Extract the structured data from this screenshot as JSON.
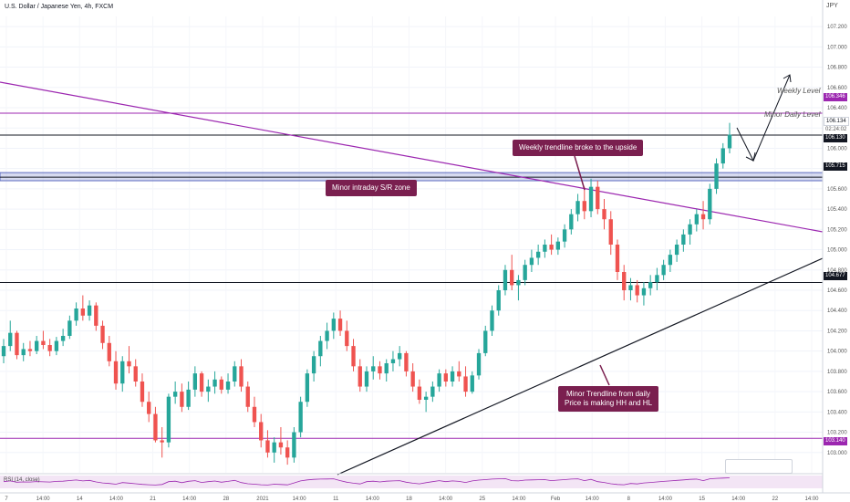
{
  "header": {
    "title": "U.S. Dollar / Japanese Yen, 4h, FXCM"
  },
  "currency": "JPY",
  "colors": {
    "up": "#26a69a",
    "down": "#ef5350",
    "purple": "#9c27b0",
    "dark": "#131722",
    "callout": "#7a1f4f",
    "zone": "#5c6bc0",
    "rsi": "#9c27b0"
  },
  "annotations": {
    "weekly_trendline": "Weekly trendline broke to the upside",
    "sr_zone": "Minor intraday S/R zone",
    "minor_trend_line1": "Minor Trendline from daily",
    "minor_trend_line2": "Price is making HH and HL",
    "weekly_level": "Weekly Level",
    "minor_daily_level": "Minor Daily Level"
  },
  "rsi_label": "RSI (14, close)",
  "chart_data": {
    "type": "candlestick",
    "symbol": "USD/JPY",
    "interval": "4h",
    "ylim": [
      102.8,
      107.3
    ],
    "y_ticks": [
      103.0,
      103.2,
      103.4,
      103.6,
      103.8,
      104.0,
      104.2,
      104.4,
      104.6,
      104.8,
      105.0,
      105.2,
      105.4,
      105.6,
      105.8,
      106.0,
      106.2,
      106.4,
      106.6,
      106.8,
      107.0,
      107.2
    ],
    "y_tick_labels": [
      "103.000",
      "103.200",
      "103.400",
      "103.600",
      "103.800",
      "104.000",
      "104.200",
      "104.400",
      "104.600",
      "104.800",
      "105.000",
      "105.200",
      "105.400",
      "105.600",
      "105.800",
      "106.000",
      "106.200",
      "106.400",
      "106.600",
      "106.800",
      "107.000",
      "107.200"
    ],
    "x_labels": [
      "7",
      "14:00",
      "14",
      "14:00",
      "21",
      "14:00",
      "28",
      "2021",
      "14:00",
      "11",
      "14:00",
      "18",
      "14:00",
      "25",
      "14:00",
      "Feb",
      "14:00",
      "8",
      "14:00",
      "15",
      "14:00",
      "22",
      "14:00"
    ],
    "levels": [
      {
        "name": "weekly",
        "price": 106.346,
        "label": "106.346",
        "color": "#9c27b0"
      },
      {
        "name": "minor-daily",
        "price": 106.13,
        "label": "106.130",
        "color": "#131722"
      },
      {
        "name": "sr-zone",
        "price": 105.715,
        "label": "105.715",
        "color": "#131722"
      },
      {
        "name": "support",
        "price": 104.677,
        "label": "104.677",
        "color": "#131722"
      },
      {
        "name": "low-level",
        "price": 103.14,
        "label": "103.140",
        "color": "#9c27b0"
      }
    ],
    "sr_zone": [
      105.68,
      105.76
    ],
    "current_price": "106.134",
    "countdown": "02:24:02",
    "candles": [
      [
        103.95,
        104.12,
        103.88,
        104.05
      ],
      [
        104.05,
        104.3,
        104.0,
        104.18
      ],
      [
        104.18,
        104.2,
        103.92,
        103.96
      ],
      [
        103.96,
        104.08,
        103.9,
        104.02
      ],
      [
        104.02,
        104.1,
        103.95,
        104.0
      ],
      [
        104.0,
        104.15,
        103.97,
        104.1
      ],
      [
        104.1,
        104.2,
        104.02,
        104.06
      ],
      [
        104.06,
        104.12,
        103.95,
        104.0
      ],
      [
        104.0,
        104.14,
        103.96,
        104.1
      ],
      [
        104.1,
        104.22,
        104.05,
        104.15
      ],
      [
        104.15,
        104.35,
        104.12,
        104.3
      ],
      [
        104.3,
        104.48,
        104.25,
        104.42
      ],
      [
        104.42,
        104.55,
        104.3,
        104.35
      ],
      [
        104.35,
        104.5,
        104.3,
        104.45
      ],
      [
        104.45,
        104.48,
        104.2,
        104.25
      ],
      [
        104.25,
        104.3,
        104.02,
        104.08
      ],
      [
        104.08,
        104.15,
        103.85,
        103.9
      ],
      [
        103.9,
        104.0,
        103.62,
        103.68
      ],
      [
        103.68,
        103.95,
        103.6,
        103.9
      ],
      [
        103.9,
        104.05,
        103.78,
        103.85
      ],
      [
        103.85,
        103.92,
        103.65,
        103.7
      ],
      [
        103.7,
        103.78,
        103.45,
        103.5
      ],
      [
        103.5,
        103.6,
        103.3,
        103.38
      ],
      [
        103.38,
        103.45,
        103.1,
        103.12
      ],
      [
        103.12,
        103.25,
        102.95,
        103.1
      ],
      [
        103.1,
        103.58,
        103.05,
        103.55
      ],
      [
        103.55,
        103.7,
        103.48,
        103.6
      ],
      [
        103.6,
        103.68,
        103.4,
        103.45
      ],
      [
        103.45,
        103.7,
        103.42,
        103.62
      ],
      [
        103.62,
        103.85,
        103.55,
        103.78
      ],
      [
        103.78,
        103.8,
        103.55,
        103.6
      ],
      [
        103.6,
        103.72,
        103.5,
        103.65
      ],
      [
        103.65,
        103.8,
        103.58,
        103.72
      ],
      [
        103.72,
        103.75,
        103.58,
        103.62
      ],
      [
        103.62,
        103.78,
        103.58,
        103.7
      ],
      [
        103.7,
        103.9,
        103.65,
        103.85
      ],
      [
        103.85,
        103.92,
        103.6,
        103.65
      ],
      [
        103.65,
        103.7,
        103.4,
        103.45
      ],
      [
        103.45,
        103.55,
        103.25,
        103.3
      ],
      [
        103.3,
        103.38,
        103.05,
        103.12
      ],
      [
        103.12,
        103.22,
        102.95,
        103.0
      ],
      [
        103.0,
        103.15,
        102.9,
        103.1
      ],
      [
        103.1,
        103.25,
        102.98,
        103.05
      ],
      [
        103.05,
        103.12,
        102.88,
        102.95
      ],
      [
        102.95,
        103.25,
        102.9,
        103.2
      ],
      [
        103.2,
        103.55,
        103.15,
        103.5
      ],
      [
        103.5,
        103.82,
        103.45,
        103.78
      ],
      [
        103.78,
        104.0,
        103.7,
        103.95
      ],
      [
        103.95,
        104.15,
        103.85,
        104.1
      ],
      [
        104.1,
        104.28,
        104.02,
        104.2
      ],
      [
        104.2,
        104.38,
        104.12,
        104.32
      ],
      [
        104.32,
        104.4,
        104.15,
        104.2
      ],
      [
        104.2,
        104.3,
        104.0,
        104.05
      ],
      [
        104.05,
        104.12,
        103.8,
        103.85
      ],
      [
        103.85,
        103.92,
        103.6,
        103.65
      ],
      [
        103.65,
        103.85,
        103.6,
        103.8
      ],
      [
        103.8,
        103.95,
        103.72,
        103.85
      ],
      [
        103.85,
        103.9,
        103.72,
        103.78
      ],
      [
        103.78,
        103.92,
        103.7,
        103.88
      ],
      [
        103.88,
        104.0,
        103.8,
        103.92
      ],
      [
        103.92,
        104.05,
        103.85,
        103.98
      ],
      [
        103.98,
        104.0,
        103.75,
        103.8
      ],
      [
        103.8,
        103.88,
        103.6,
        103.65
      ],
      [
        103.65,
        103.72,
        103.48,
        103.52
      ],
      [
        103.52,
        103.6,
        103.4,
        103.55
      ],
      [
        103.55,
        103.7,
        103.5,
        103.65
      ],
      [
        103.65,
        103.82,
        103.6,
        103.78
      ],
      [
        103.78,
        103.82,
        103.65,
        103.7
      ],
      [
        103.7,
        103.85,
        103.65,
        103.8
      ],
      [
        103.8,
        103.9,
        103.7,
        103.75
      ],
      [
        103.75,
        103.85,
        103.55,
        103.6
      ],
      [
        103.6,
        103.8,
        103.58,
        103.76
      ],
      [
        103.76,
        104.02,
        103.72,
        103.98
      ],
      [
        103.98,
        104.25,
        103.95,
        104.2
      ],
      [
        104.2,
        104.45,
        104.15,
        104.4
      ],
      [
        104.4,
        104.65,
        104.35,
        104.6
      ],
      [
        104.6,
        104.85,
        104.55,
        104.8
      ],
      [
        104.8,
        104.95,
        104.6,
        104.65
      ],
      [
        104.65,
        104.75,
        104.5,
        104.7
      ],
      [
        104.7,
        104.9,
        104.65,
        104.85
      ],
      [
        104.85,
        105.0,
        104.78,
        104.92
      ],
      [
        104.92,
        105.05,
        104.85,
        104.98
      ],
      [
        104.98,
        105.1,
        104.92,
        105.05
      ],
      [
        105.05,
        105.15,
        104.95,
        105.0
      ],
      [
        105.0,
        105.12,
        104.95,
        105.08
      ],
      [
        105.08,
        105.25,
        105.02,
        105.2
      ],
      [
        105.2,
        105.4,
        105.15,
        105.35
      ],
      [
        105.35,
        105.55,
        105.28,
        105.48
      ],
      [
        105.48,
        105.62,
        105.3,
        105.38
      ],
      [
        105.38,
        105.7,
        105.32,
        105.62
      ],
      [
        105.62,
        105.68,
        105.35,
        105.4
      ],
      [
        105.4,
        105.5,
        105.2,
        105.3
      ],
      [
        105.3,
        105.38,
        104.95,
        105.05
      ],
      [
        105.05,
        105.1,
        104.7,
        104.78
      ],
      [
        104.78,
        104.85,
        104.5,
        104.6
      ],
      [
        104.6,
        104.72,
        104.5,
        104.65
      ],
      [
        104.65,
        104.7,
        104.48,
        104.55
      ],
      [
        104.55,
        104.68,
        104.45,
        104.62
      ],
      [
        104.62,
        104.75,
        104.55,
        104.68
      ],
      [
        104.68,
        104.82,
        104.6,
        104.75
      ],
      [
        104.75,
        104.9,
        104.7,
        104.85
      ],
      [
        104.85,
        105.0,
        104.78,
        104.95
      ],
      [
        104.95,
        105.1,
        104.88,
        105.05
      ],
      [
        105.05,
        105.2,
        104.98,
        105.15
      ],
      [
        105.15,
        105.3,
        105.05,
        105.25
      ],
      [
        105.25,
        105.4,
        105.18,
        105.35
      ],
      [
        105.35,
        105.48,
        105.2,
        105.3
      ],
      [
        105.3,
        105.65,
        105.25,
        105.6
      ],
      [
        105.6,
        105.9,
        105.55,
        105.85
      ],
      [
        105.85,
        106.05,
        105.8,
        106.0
      ],
      [
        106.0,
        106.25,
        105.95,
        106.134
      ]
    ],
    "rsi": [
      52,
      58,
      48,
      50,
      49,
      53,
      51,
      49,
      54,
      56,
      61,
      65,
      58,
      62,
      50,
      42,
      38,
      32,
      45,
      41,
      36,
      31,
      28,
      26,
      30,
      52,
      56,
      44,
      55,
      60,
      46,
      52,
      57,
      48,
      54,
      62,
      45,
      36,
      32,
      28,
      26,
      32,
      30,
      27,
      42,
      58,
      66,
      70,
      72,
      73,
      74,
      60,
      48,
      40,
      34,
      52,
      56,
      50,
      56,
      58,
      60,
      48,
      40,
      35,
      44,
      52,
      60,
      52,
      58,
      54,
      46,
      58,
      64,
      68,
      72,
      74,
      76,
      60,
      58,
      64,
      66,
      67,
      68,
      60,
      64,
      68,
      72,
      74,
      60,
      70,
      52,
      46,
      36,
      30,
      28,
      38,
      34,
      42,
      46,
      50,
      54,
      58,
      62,
      66,
      70,
      72,
      60,
      74,
      78,
      80,
      82
    ]
  }
}
